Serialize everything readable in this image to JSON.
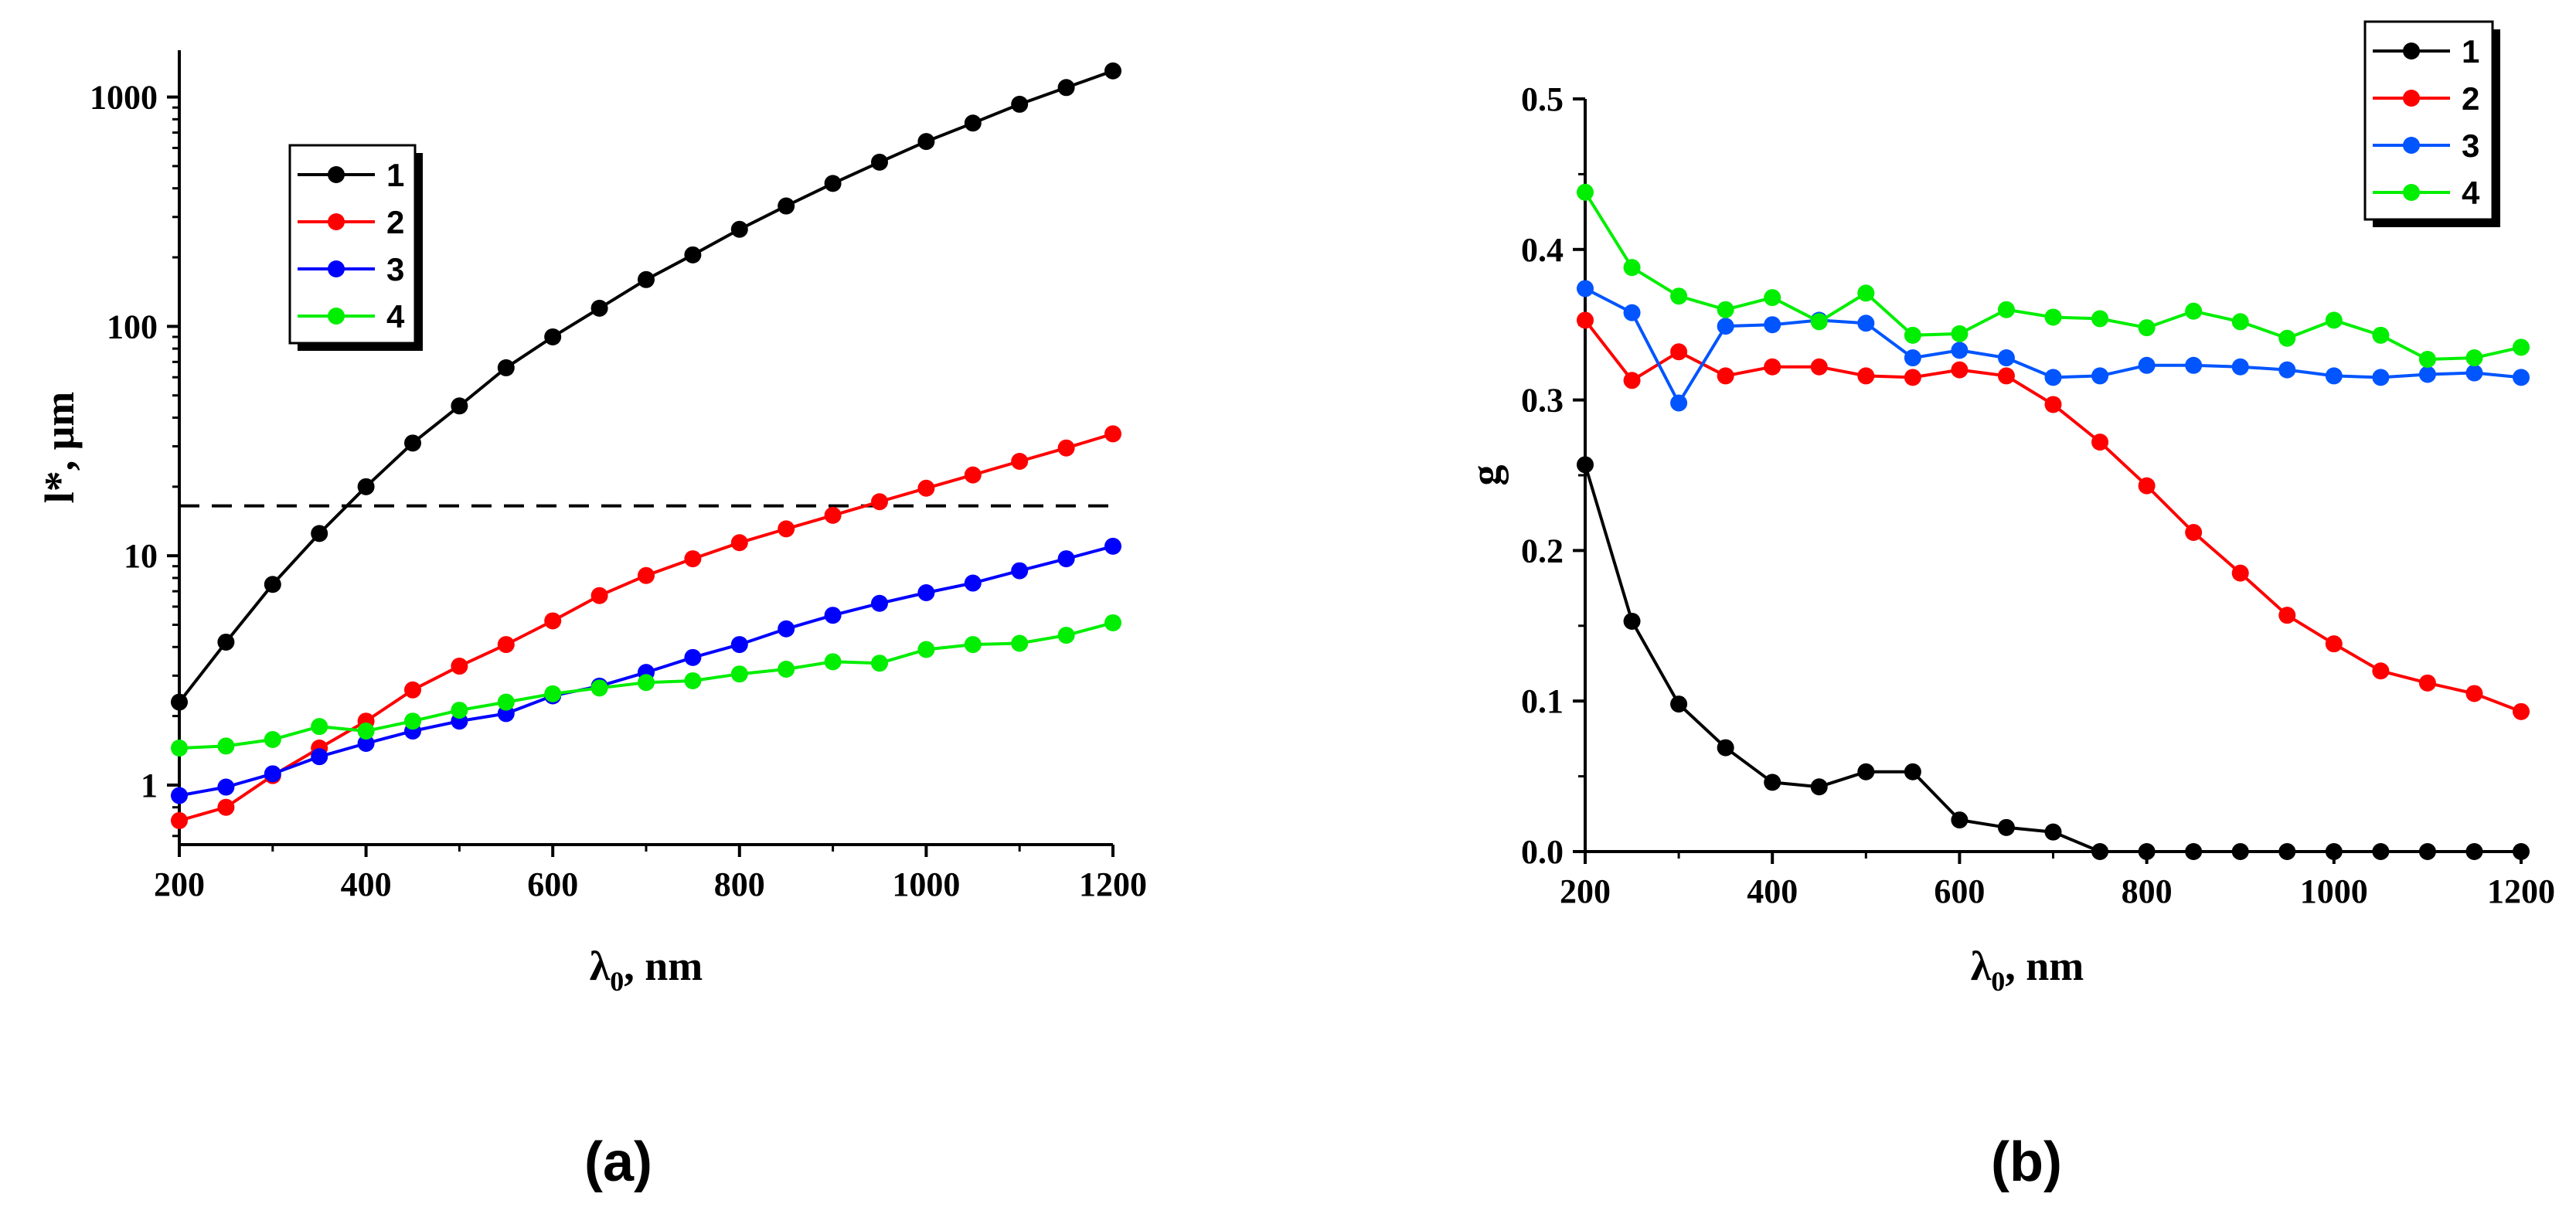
{
  "chart_data": [
    {
      "id": "a",
      "type": "line",
      "yscale": "log",
      "caption": "(a)",
      "xlabel_main": "λ",
      "xlabel_sub": "0",
      "xlabel_rest": ", nm",
      "ylabel": "l*, μm",
      "xlim": [
        200,
        1200
      ],
      "ylim": [
        0.55,
        1600
      ],
      "xticks": [
        200,
        400,
        600,
        800,
        1000,
        1200
      ],
      "xtick_labels": [
        "200",
        "400",
        "600",
        "800",
        "1000",
        "1200"
      ],
      "yticks": [
        1,
        10,
        100,
        1000
      ],
      "ytick_labels": [
        "1",
        "10",
        "100",
        "1000"
      ],
      "reference_line": {
        "y": 16.5,
        "style": "dashed"
      },
      "legend_position": "top-left",
      "x": [
        200,
        250,
        300,
        350,
        400,
        450,
        500,
        550,
        600,
        650,
        700,
        750,
        800,
        850,
        900,
        950,
        1000,
        1050,
        1100,
        1150,
        1200
      ],
      "series": [
        {
          "name": "1",
          "color": "#000000",
          "values": [
            2.3,
            4.2,
            7.5,
            12.5,
            20,
            31,
            45,
            66,
            90,
            120,
            160,
            205,
            265,
            335,
            420,
            520,
            640,
            770,
            930,
            1100,
            1300
          ]
        },
        {
          "name": "2",
          "color": "#ff0000",
          "values": [
            0.7,
            0.8,
            1.1,
            1.45,
            1.9,
            2.6,
            3.3,
            4.1,
            5.2,
            6.7,
            8.2,
            9.7,
            11.4,
            13.1,
            15,
            17.2,
            19.7,
            22.5,
            25.8,
            29.5,
            34
          ]
        },
        {
          "name": "3",
          "color": "#0000ff",
          "values": [
            0.9,
            0.98,
            1.12,
            1.33,
            1.52,
            1.72,
            1.9,
            2.05,
            2.45,
            2.7,
            3.1,
            3.6,
            4.1,
            4.8,
            5.5,
            6.2,
            6.9,
            7.6,
            8.6,
            9.7,
            11
          ]
        },
        {
          "name": "4",
          "color": "#00ee00",
          "values": [
            1.45,
            1.48,
            1.58,
            1.8,
            1.72,
            1.9,
            2.12,
            2.3,
            2.5,
            2.65,
            2.8,
            2.85,
            3.05,
            3.2,
            3.45,
            3.4,
            3.9,
            4.1,
            4.15,
            4.5,
            5.1
          ]
        }
      ]
    },
    {
      "id": "b",
      "type": "line",
      "yscale": "linear",
      "caption": "(b)",
      "xlabel_main": "λ",
      "xlabel_sub": "0",
      "xlabel_rest": ", nm",
      "ylabel": "g",
      "xlim": [
        200,
        1200
      ],
      "ylim": [
        0,
        0.5
      ],
      "xticks": [
        200,
        400,
        600,
        800,
        1000,
        1200
      ],
      "xtick_labels": [
        "200",
        "400",
        "600",
        "800",
        "1000",
        "1200"
      ],
      "yticks": [
        0,
        0.1,
        0.2,
        0.3,
        0.4,
        0.5
      ],
      "ytick_labels": [
        "0.0",
        "0.1",
        "0.2",
        "0.3",
        "0.4",
        "0.5"
      ],
      "legend_position": "top-right",
      "x": [
        200,
        250,
        300,
        350,
        400,
        450,
        500,
        550,
        600,
        650,
        700,
        750,
        800,
        850,
        900,
        950,
        1000,
        1050,
        1100,
        1150,
        1200
      ],
      "series": [
        {
          "name": "1",
          "color": "#000000",
          "values": [
            0.257,
            0.153,
            0.098,
            0.069,
            0.046,
            0.043,
            0.053,
            0.053,
            0.021,
            0.016,
            0.013,
            0.0,
            0.0,
            0.0,
            0.0,
            0.0,
            0.0,
            0.0,
            0.0,
            0.0,
            0.0
          ]
        },
        {
          "name": "2",
          "color": "#ff0000",
          "values": [
            0.353,
            0.313,
            0.332,
            0.316,
            0.322,
            0.322,
            0.316,
            0.315,
            0.32,
            0.316,
            0.297,
            0.272,
            0.243,
            0.212,
            0.185,
            0.157,
            0.138,
            0.12,
            0.112,
            0.105,
            0.093
          ]
        },
        {
          "name": "3",
          "color": "#0055ff",
          "values": [
            0.374,
            0.358,
            0.298,
            0.349,
            0.35,
            0.353,
            0.351,
            0.328,
            0.333,
            0.328,
            0.315,
            0.316,
            0.323,
            0.323,
            0.322,
            0.32,
            0.316,
            0.315,
            0.317,
            0.318,
            0.315
          ]
        },
        {
          "name": "4",
          "color": "#00ee00",
          "values": [
            0.438,
            0.388,
            0.369,
            0.36,
            0.368,
            0.352,
            0.371,
            0.343,
            0.344,
            0.36,
            0.355,
            0.354,
            0.348,
            0.359,
            0.352,
            0.341,
            0.353,
            0.343,
            0.327,
            0.328,
            0.335
          ]
        }
      ]
    }
  ]
}
